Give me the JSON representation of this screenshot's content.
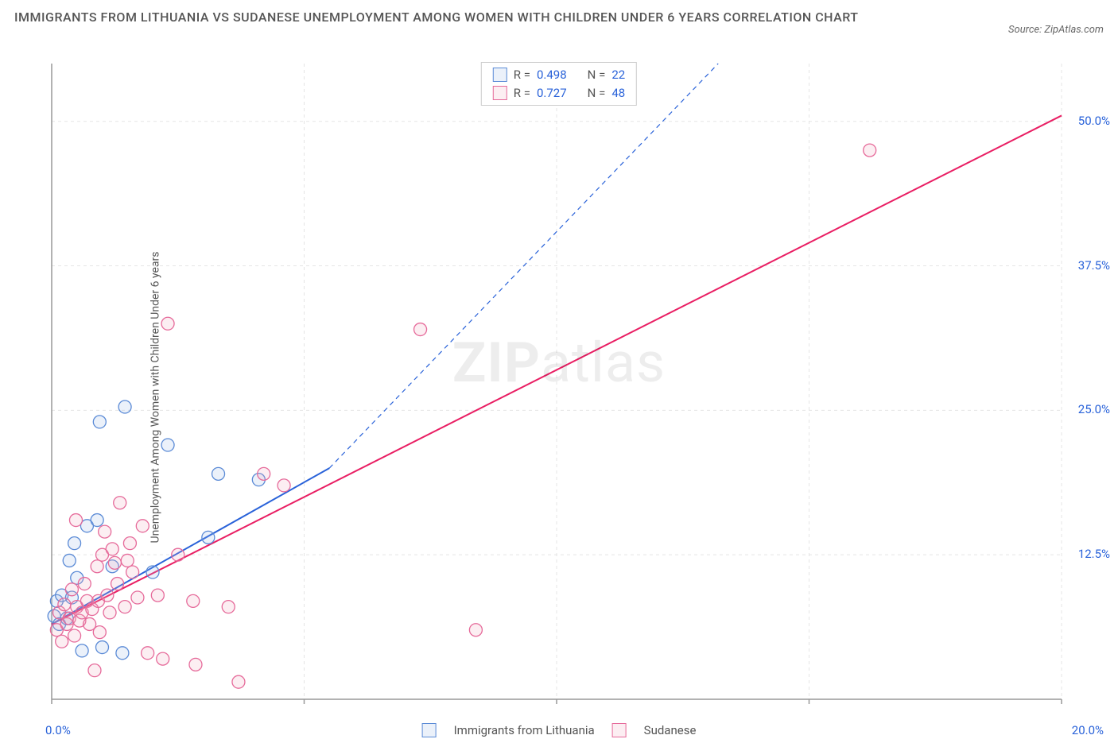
{
  "title": "IMMIGRANTS FROM LITHUANIA VS SUDANESE UNEMPLOYMENT AMONG WOMEN WITH CHILDREN UNDER 6 YEARS CORRELATION CHART",
  "source": "Source: ZipAtlas.com",
  "watermark_bold": "ZIP",
  "watermark_light": "atlas",
  "ylabel": "Unemployment Among Women with Children Under 6 years",
  "chart": {
    "type": "scatter",
    "background_color": "#ffffff",
    "grid_color": "#e5e5e5",
    "axis_color": "#999999",
    "tick_color": "#2962d9",
    "xlim": [
      0,
      20
    ],
    "ylim": [
      0,
      55
    ],
    "xtick_min": "0.0%",
    "xtick_max": "20.0%",
    "x_gridlines": [
      5,
      10,
      15,
      20
    ],
    "yticks": [
      {
        "v": 12.5,
        "label": "12.5%"
      },
      {
        "v": 25.0,
        "label": "25.0%"
      },
      {
        "v": 37.5,
        "label": "37.5%"
      },
      {
        "v": 50.0,
        "label": "50.0%"
      }
    ],
    "series": [
      {
        "name": "Immigrants from Lithuania",
        "color_fill": "#9cb8e833",
        "color_stroke": "#5a8ad6",
        "r_label": "0.498",
        "n_label": "22",
        "trend": {
          "x1": 0,
          "y1": 6.5,
          "x2": 5.5,
          "y2": 20,
          "dash_x2": 13.2,
          "dash_y2": 55,
          "color": "#2962d9",
          "width": 2
        },
        "points": [
          [
            0.05,
            7.2
          ],
          [
            0.1,
            8.5
          ],
          [
            0.15,
            6.5
          ],
          [
            0.2,
            9.0
          ],
          [
            0.3,
            7.0
          ],
          [
            0.4,
            8.8
          ],
          [
            0.45,
            13.5
          ],
          [
            0.6,
            4.2
          ],
          [
            0.7,
            15.0
          ],
          [
            0.95,
            24.0
          ],
          [
            1.0,
            4.5
          ],
          [
            1.2,
            11.5
          ],
          [
            1.4,
            4.0
          ],
          [
            1.45,
            25.3
          ],
          [
            2.0,
            11.0
          ],
          [
            2.3,
            22.0
          ],
          [
            3.1,
            14.0
          ],
          [
            3.3,
            19.5
          ],
          [
            4.1,
            19.0
          ],
          [
            0.9,
            15.5
          ],
          [
            0.5,
            10.5
          ],
          [
            0.35,
            12.0
          ]
        ]
      },
      {
        "name": "Sudanese",
        "color_fill": "#f0a8c033",
        "color_stroke": "#e66a9a",
        "r_label": "0.727",
        "n_label": "48",
        "trend": {
          "x1": 0,
          "y1": 6.5,
          "x2": 20,
          "y2": 50.5,
          "color": "#e91e63",
          "width": 2
        },
        "points": [
          [
            0.1,
            6.0
          ],
          [
            0.15,
            7.5
          ],
          [
            0.2,
            5.0
          ],
          [
            0.25,
            8.2
          ],
          [
            0.3,
            6.5
          ],
          [
            0.35,
            7.0
          ],
          [
            0.4,
            9.5
          ],
          [
            0.45,
            5.5
          ],
          [
            0.5,
            8.0
          ],
          [
            0.55,
            6.8
          ],
          [
            0.6,
            7.5
          ],
          [
            0.65,
            10.0
          ],
          [
            0.7,
            8.5
          ],
          [
            0.75,
            6.5
          ],
          [
            0.8,
            7.8
          ],
          [
            0.85,
            2.5
          ],
          [
            0.9,
            11.5
          ],
          [
            0.92,
            8.5
          ],
          [
            0.95,
            5.8
          ],
          [
            1.0,
            12.5
          ],
          [
            1.1,
            9.0
          ],
          [
            1.15,
            7.5
          ],
          [
            1.2,
            13.0
          ],
          [
            1.3,
            10.0
          ],
          [
            1.35,
            17.0
          ],
          [
            1.45,
            8.0
          ],
          [
            1.5,
            12.0
          ],
          [
            1.55,
            13.5
          ],
          [
            1.6,
            11.0
          ],
          [
            1.8,
            15.0
          ],
          [
            1.9,
            4.0
          ],
          [
            2.1,
            9.0
          ],
          [
            2.2,
            3.5
          ],
          [
            2.3,
            32.5
          ],
          [
            2.5,
            12.5
          ],
          [
            2.8,
            8.5
          ],
          [
            2.85,
            3.0
          ],
          [
            3.5,
            8.0
          ],
          [
            3.7,
            1.5
          ],
          [
            4.2,
            19.5
          ],
          [
            4.6,
            18.5
          ],
          [
            7.3,
            32.0
          ],
          [
            8.4,
            6.0
          ],
          [
            16.2,
            47.5
          ],
          [
            1.05,
            14.5
          ],
          [
            0.48,
            15.5
          ],
          [
            1.7,
            8.8
          ],
          [
            1.25,
            11.8
          ]
        ]
      }
    ],
    "legend_r_prefix": "R =",
    "legend_n_prefix": "N ="
  }
}
